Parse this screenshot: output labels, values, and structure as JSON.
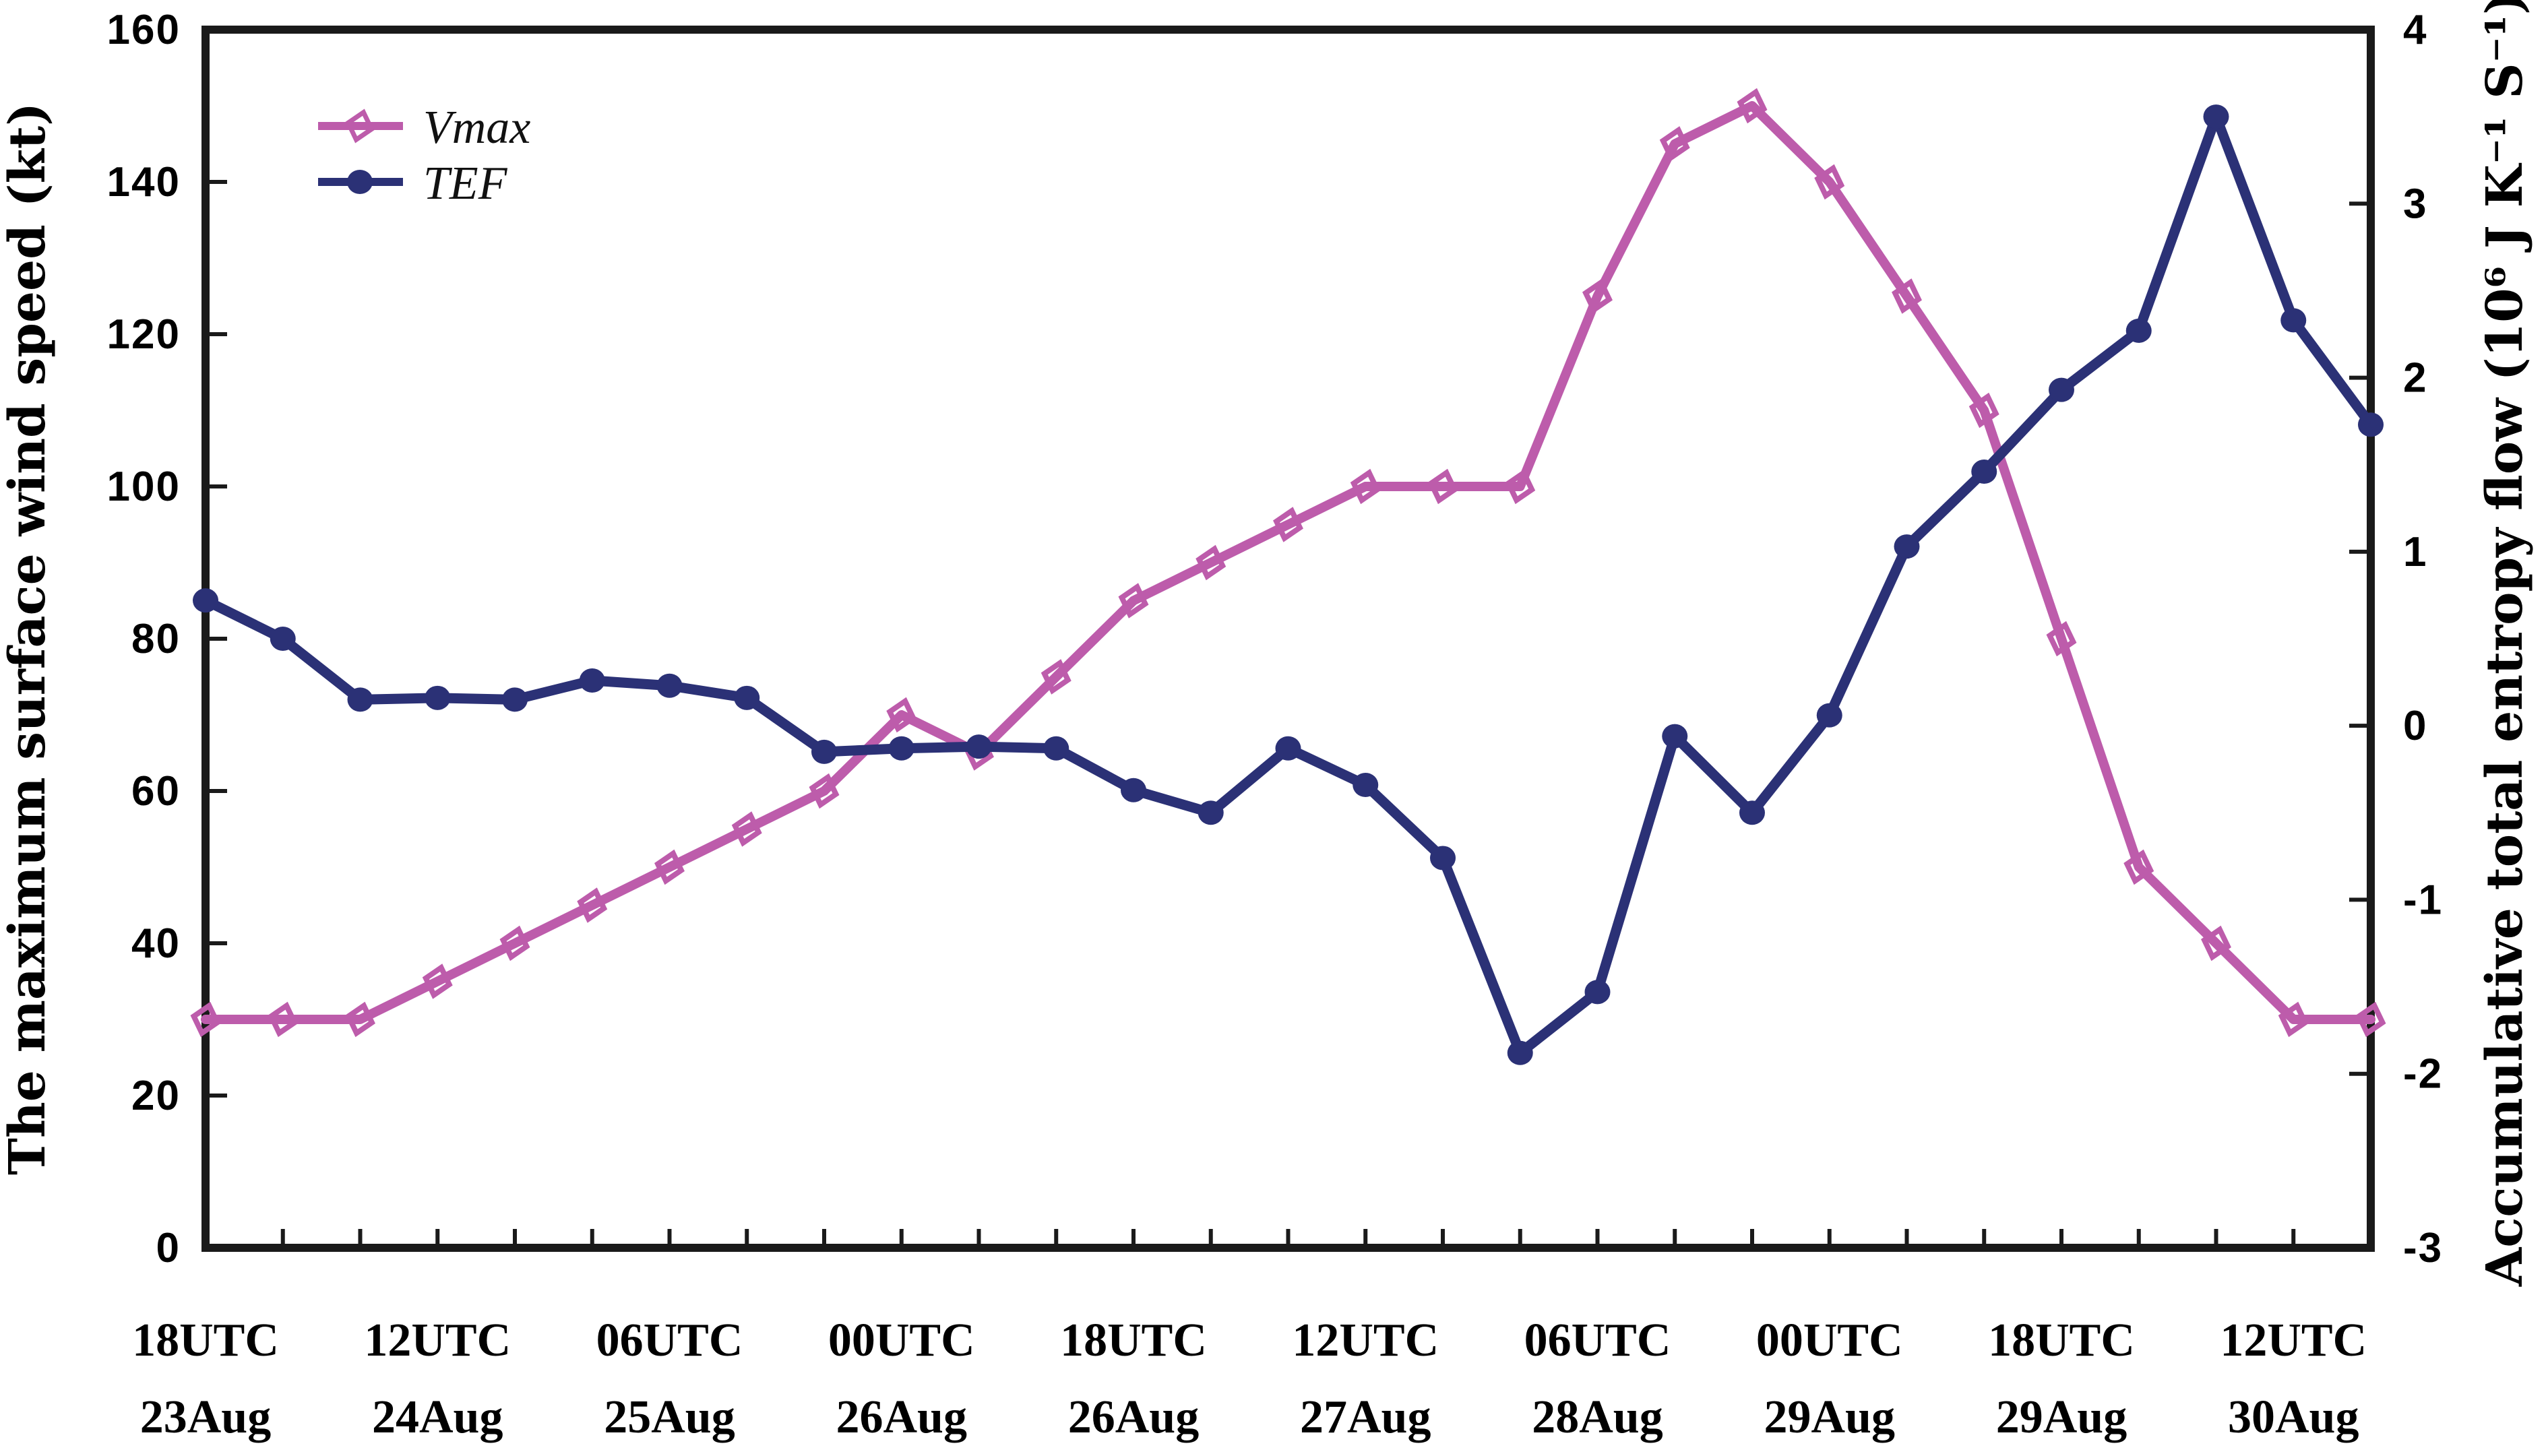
{
  "chart_data": {
    "type": "line",
    "title": "",
    "x_axis": {
      "points": 29,
      "interval_hours": 6,
      "label_every_n_points": 3,
      "tick_labels": [
        {
          "time": "18UTC",
          "date": "23Aug"
        },
        {
          "time": "12UTC",
          "date": "24Aug"
        },
        {
          "time": "06UTC",
          "date": "25Aug"
        },
        {
          "time": "00UTC",
          "date": "26Aug"
        },
        {
          "time": "18UTC",
          "date": "26Aug"
        },
        {
          "time": "12UTC",
          "date": "27Aug"
        },
        {
          "time": "06UTC",
          "date": "28Aug"
        },
        {
          "time": "00UTC",
          "date": "29Aug"
        },
        {
          "time": "18UTC",
          "date": "29Aug"
        },
        {
          "time": "12UTC",
          "date": "30Aug"
        }
      ]
    },
    "left_axis": {
      "label": "The maximum surface wind speed (kt)",
      "min": 0,
      "max": 160,
      "tick_step": 20,
      "tick_labels": [
        "0",
        "20",
        "40",
        "60",
        "80",
        "100",
        "120",
        "140",
        "160"
      ]
    },
    "right_axis": {
      "label": "Accumulative total entropy flow (10⁶ J K⁻¹ S⁻¹)",
      "min": -3,
      "max": 4,
      "tick_step": 1,
      "tick_labels": [
        "-3",
        "-2",
        "-1",
        "0",
        "1",
        "2",
        "3",
        "4"
      ]
    },
    "series": [
      {
        "name": "Vmax",
        "axis": "left",
        "marker": "open-diamond",
        "color": "#BD5CAB",
        "values": [
          30,
          30,
          30,
          35,
          40,
          45,
          50,
          55,
          60,
          70,
          65,
          75,
          85,
          90,
          95,
          100,
          100,
          100,
          125,
          145,
          150,
          140,
          125,
          110,
          80,
          50,
          40,
          30,
          30
        ]
      },
      {
        "name": "TEF",
        "axis": "right",
        "marker": "filled-circle",
        "color": "#2B3176",
        "values": [
          0.72,
          0.5,
          0.15,
          0.16,
          0.15,
          0.26,
          0.23,
          0.16,
          -0.15,
          -0.13,
          -0.12,
          -0.13,
          -0.37,
          -0.5,
          -0.13,
          -0.34,
          -0.76,
          -1.88,
          -1.53,
          -0.06,
          -0.5,
          0.06,
          1.03,
          1.46,
          1.93,
          2.27,
          3.5,
          2.33,
          1.73
        ]
      }
    ],
    "legend": {
      "position": "top-left",
      "entries": [
        "Vmax",
        "TEF"
      ]
    },
    "grid": false
  },
  "colors": {
    "vmax": "#BD5CAB",
    "tef": "#2B3176",
    "axis": "#1A1A1A",
    "text": "#000000",
    "background": "#FFFFFF"
  }
}
